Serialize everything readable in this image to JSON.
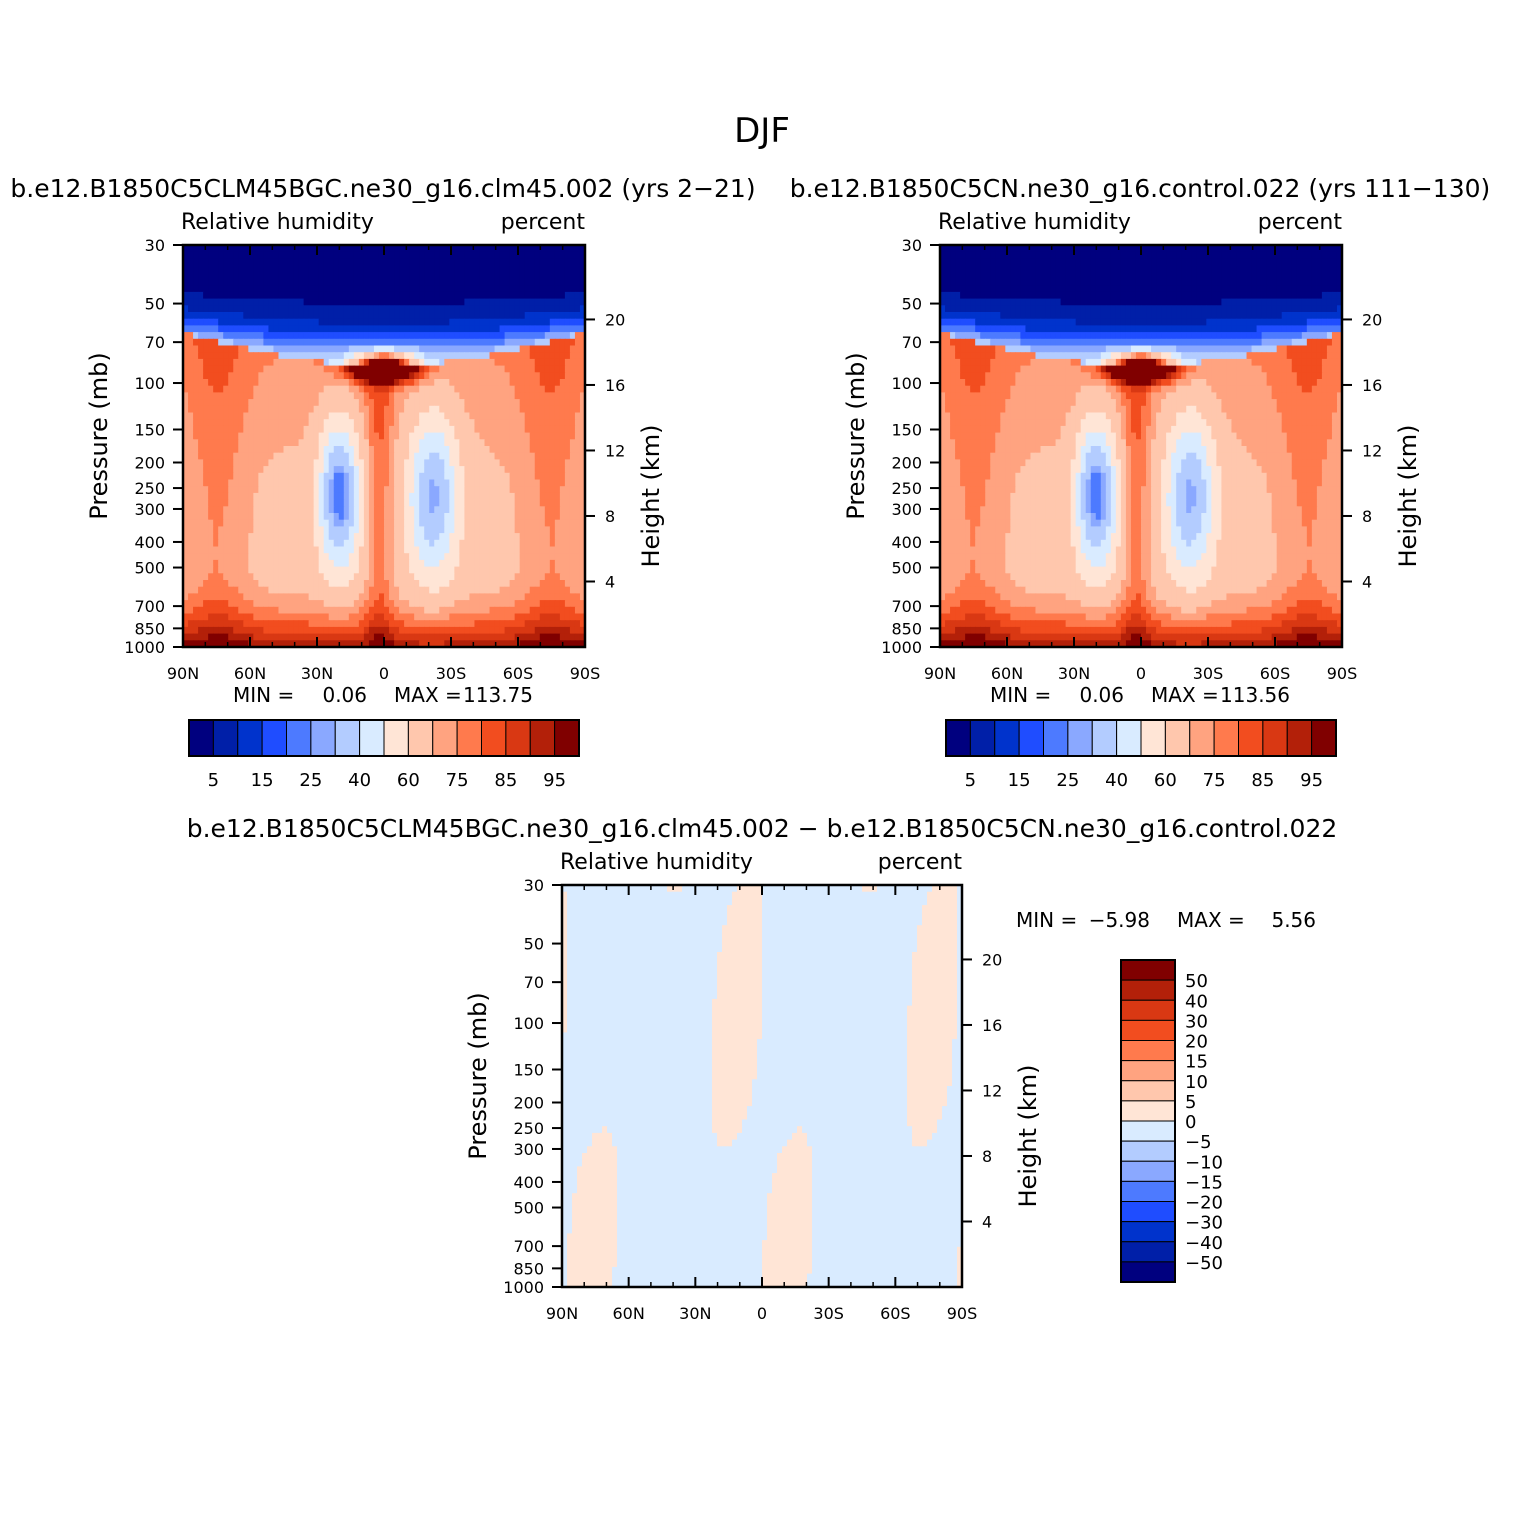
{
  "title": "DJF",
  "colors": {
    "seq": [
      "#00007f",
      "#001fa8",
      "#0033cc",
      "#1f4dff",
      "#4d7aff",
      "#8aa8ff",
      "#b3ccff",
      "#d9ebff",
      "#ffe5d6",
      "#ffc7ad",
      "#ffa380",
      "#ff7a4d",
      "#f24d1f",
      "#d93813",
      "#b32009",
      "#800000"
    ],
    "diff": [
      "#00007f",
      "#001fa8",
      "#0033cc",
      "#1f4dff",
      "#4d7aff",
      "#8aa8ff",
      "#b3ccff",
      "#d9ebff",
      "#ffe5d6",
      "#ffc7ad",
      "#ffa380",
      "#ff7a4d",
      "#f24d1f",
      "#d93813",
      "#b32009",
      "#800000"
    ]
  },
  "chart_data": [
    {
      "type": "heatmap",
      "panel": "case",
      "subtitle": "b.e12.B1850C5CLM45BGC.ne30_g16.clm45.002 (yrs 2-21)",
      "variable": "Relative humidity",
      "units": "percent",
      "ylabel": "Pressure (mb)",
      "ylabel_right": "Height (km)",
      "xticks": [
        "90N",
        "60N",
        "30N",
        "0",
        "30S",
        "60S",
        "90S"
      ],
      "yticks": [
        "30",
        "50",
        "70",
        "100",
        "150",
        "200",
        "250",
        "300",
        "400",
        "500",
        "700",
        "850",
        "1000"
      ],
      "yticks_right": [
        "20",
        "16",
        "12",
        "8",
        "4"
      ],
      "min_label": "MIN =",
      "min_value": "0.06",
      "max_label": "MAX =",
      "max_value": "113.75",
      "colorbar_labels": [
        "5",
        "15",
        "25",
        "40",
        "60",
        "75",
        "85",
        "95"
      ]
    },
    {
      "type": "heatmap",
      "panel": "control",
      "subtitle": "b.e12.B1850C5CN.ne30_g16.control.022 (yrs 111-130)",
      "variable": "Relative humidity",
      "units": "percent",
      "ylabel": "Pressure (mb)",
      "ylabel_right": "Height (km)",
      "xticks": [
        "90N",
        "60N",
        "30N",
        "0",
        "30S",
        "60S",
        "90S"
      ],
      "yticks": [
        "30",
        "50",
        "70",
        "100",
        "150",
        "200",
        "250",
        "300",
        "400",
        "500",
        "700",
        "850",
        "1000"
      ],
      "yticks_right": [
        "20",
        "16",
        "12",
        "8",
        "4"
      ],
      "min_label": "MIN =",
      "min_value": "0.06",
      "max_label": "MAX =",
      "max_value": "113.56",
      "colorbar_labels": [
        "5",
        "15",
        "25",
        "40",
        "60",
        "75",
        "85",
        "95"
      ]
    },
    {
      "type": "heatmap",
      "panel": "difference",
      "subtitle": "b.e12.B1850C5CLM45BGC.ne30_g16.clm45.002 - b.e12.B1850C5CN.ne30_g16.control.022",
      "variable": "Relative humidity",
      "units": "percent",
      "ylabel": "Pressure (mb)",
      "ylabel_right": "Height (km)",
      "xticks": [
        "90N",
        "60N",
        "30N",
        "0",
        "30S",
        "60S",
        "90S"
      ],
      "yticks": [
        "30",
        "50",
        "70",
        "100",
        "150",
        "200",
        "250",
        "300",
        "400",
        "500",
        "700",
        "850",
        "1000"
      ],
      "yticks_right": [
        "20",
        "16",
        "12",
        "8",
        "4"
      ],
      "min_label": "MIN =",
      "min_value": "-5.98",
      "max_label": "MAX =",
      "max_value": "5.56",
      "colorbar_labels": [
        "50",
        "40",
        "30",
        "20",
        "15",
        "10",
        "5",
        "0",
        "-5",
        "-10",
        "-15",
        "-20",
        "-30",
        "-40",
        "-50"
      ]
    }
  ]
}
